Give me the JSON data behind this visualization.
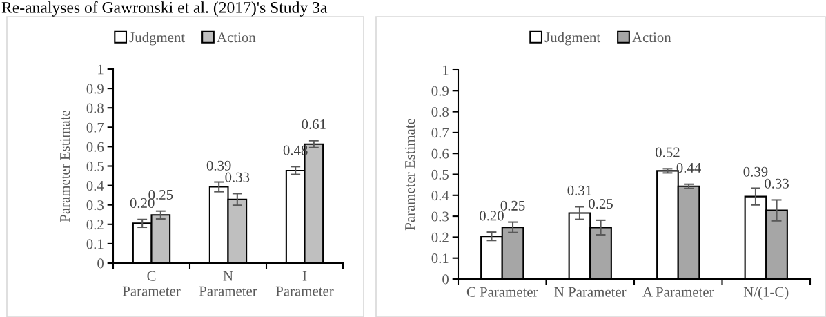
{
  "chart_data": [
    {
      "type": "bar",
      "title": "Re-analyses of Gawronski et al. (2017)'s Study 3a",
      "ylabel": "Parameter Estimate",
      "categories": [
        "C\nParameter",
        "N\nParameter",
        "I\nParameter"
      ],
      "series": [
        {
          "name": "Judgment",
          "color": "#ffffff",
          "values": [
            0.205,
            0.393,
            0.477
          ],
          "errors": [
            0.02,
            0.025,
            0.02
          ],
          "value_labels": [
            "0.20",
            "0.39",
            "0.48"
          ]
        },
        {
          "name": "Action",
          "color": "#bfbfbf",
          "values": [
            0.248,
            0.328,
            0.613
          ],
          "errors": [
            0.02,
            0.03,
            0.018
          ],
          "value_labels": [
            "0.25",
            "0.33",
            "0.61"
          ]
        }
      ],
      "ylim": [
        0,
        1
      ],
      "yticks": [
        0,
        0.1,
        0.2,
        0.3,
        0.4,
        0.5,
        0.6,
        0.7,
        0.8,
        0.9,
        1
      ],
      "legend": "top",
      "grid": false
    },
    {
      "type": "bar",
      "ylabel": "Parameter Estimate",
      "categories": [
        "C Parameter",
        "N Parameter",
        "A Parameter",
        "N/(1-C)"
      ],
      "series": [
        {
          "name": "Judgment",
          "color": "#ffffff",
          "values": [
            0.204,
            0.315,
            0.517,
            0.394
          ],
          "errors": [
            0.02,
            0.03,
            0.01,
            0.04
          ],
          "value_labels": [
            "0.20",
            "0.31",
            "0.52",
            "0.39"
          ]
        },
        {
          "name": "Action",
          "color": "#a6a6a6",
          "values": [
            0.247,
            0.246,
            0.443,
            0.328
          ],
          "errors": [
            0.025,
            0.035,
            0.01,
            0.05
          ],
          "value_labels": [
            "0.25",
            "0.25",
            "0.44",
            "0.33"
          ]
        }
      ],
      "ylim": [
        0,
        1
      ],
      "yticks": [
        0,
        0.1,
        0.2,
        0.3,
        0.4,
        0.5,
        0.6,
        0.7,
        0.8,
        0.9,
        1
      ],
      "legend": "top",
      "grid": false
    }
  ]
}
